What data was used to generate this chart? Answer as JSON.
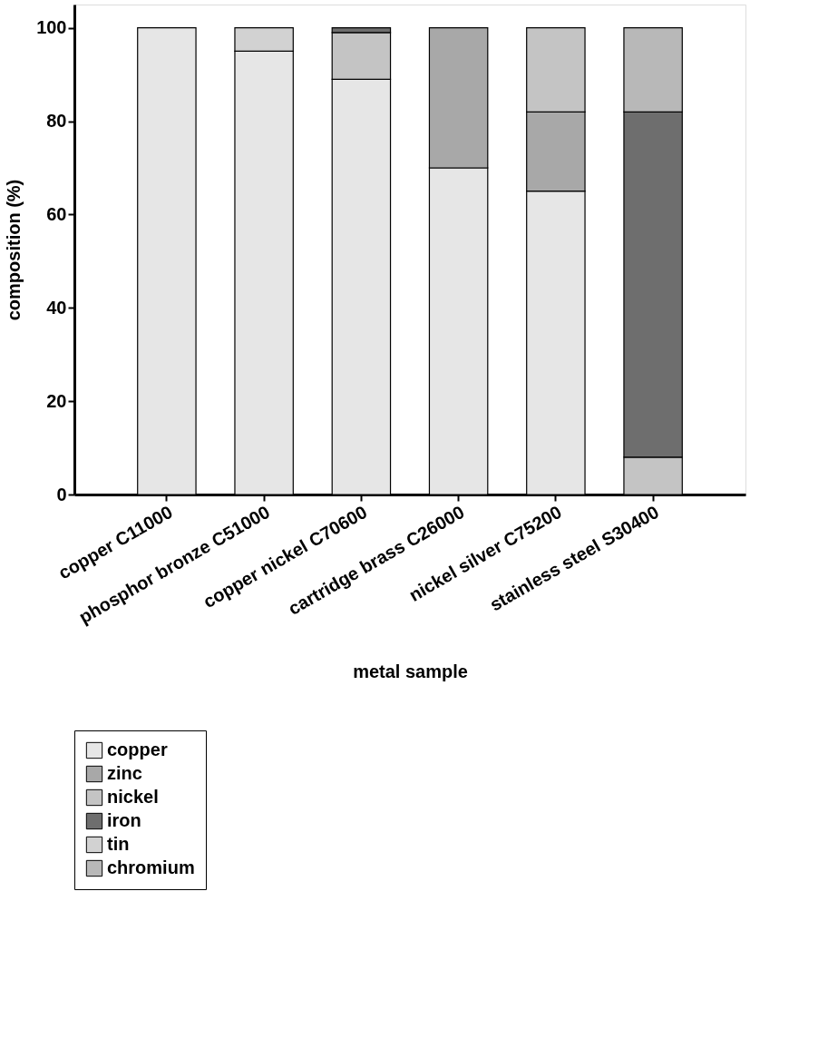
{
  "chart_data": {
    "type": "bar",
    "stacked": true,
    "xlabel": "metal sample",
    "ylabel": "composition (%)",
    "categories": [
      "copper C11000",
      "phosphor bronze C51000",
      "copper nickel C70600",
      "cartridge brass C26000",
      "nickel silver C75200",
      "stainless steel S30400"
    ],
    "series": [
      {
        "name": "copper",
        "color": "#e6e6e6",
        "values": [
          100,
          95,
          89,
          70,
          65,
          null
        ]
      },
      {
        "name": "zinc",
        "color": "#a8a8a8",
        "values": [
          null,
          null,
          null,
          30,
          17,
          null
        ]
      },
      {
        "name": "nickel",
        "color": "#c4c4c4",
        "values": [
          null,
          null,
          10,
          null,
          18,
          8
        ]
      },
      {
        "name": "iron",
        "color": "#6e6e6e",
        "values": [
          null,
          null,
          1,
          null,
          null,
          74
        ]
      },
      {
        "name": "tin",
        "color": "#d2d2d2",
        "values": [
          null,
          5,
          null,
          null,
          null,
          null
        ]
      },
      {
        "name": "chromium",
        "color": "#b8b8b8",
        "values": [
          null,
          null,
          null,
          null,
          null,
          18
        ]
      }
    ],
    "ylim": [
      0,
      105
    ],
    "yticks": [
      0,
      20,
      40,
      60,
      80,
      100
    ],
    "grid": false,
    "legend": "bottom left"
  }
}
